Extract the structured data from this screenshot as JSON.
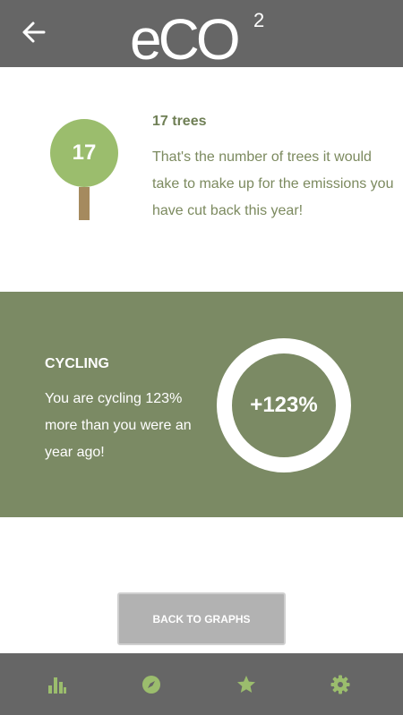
{
  "header": {
    "back_icon": "arrow-left-icon",
    "logo_text": "eCO",
    "logo_superscript": "2"
  },
  "trees": {
    "count": "17",
    "title": "17 trees",
    "description": "That's the number of trees it would take to make up for the emissions you have cut back this year!"
  },
  "cycling": {
    "title": "CYCLING",
    "description": "You are cycling 123% more than you were an year ago!",
    "percent": "+123%"
  },
  "actions": {
    "back_to_graphs": "BACK TO GRAPHS"
  },
  "bottom_nav": {
    "items": [
      {
        "icon": "bar-chart-icon"
      },
      {
        "icon": "compass-icon"
      },
      {
        "icon": "star-icon"
      },
      {
        "icon": "gear-icon"
      }
    ]
  },
  "colors": {
    "header_bg": "#666666",
    "accent_green": "#9bbd6d",
    "section_green": "#7b8a64",
    "trunk": "#a58a5e",
    "button_grey": "#b2b2b2"
  }
}
